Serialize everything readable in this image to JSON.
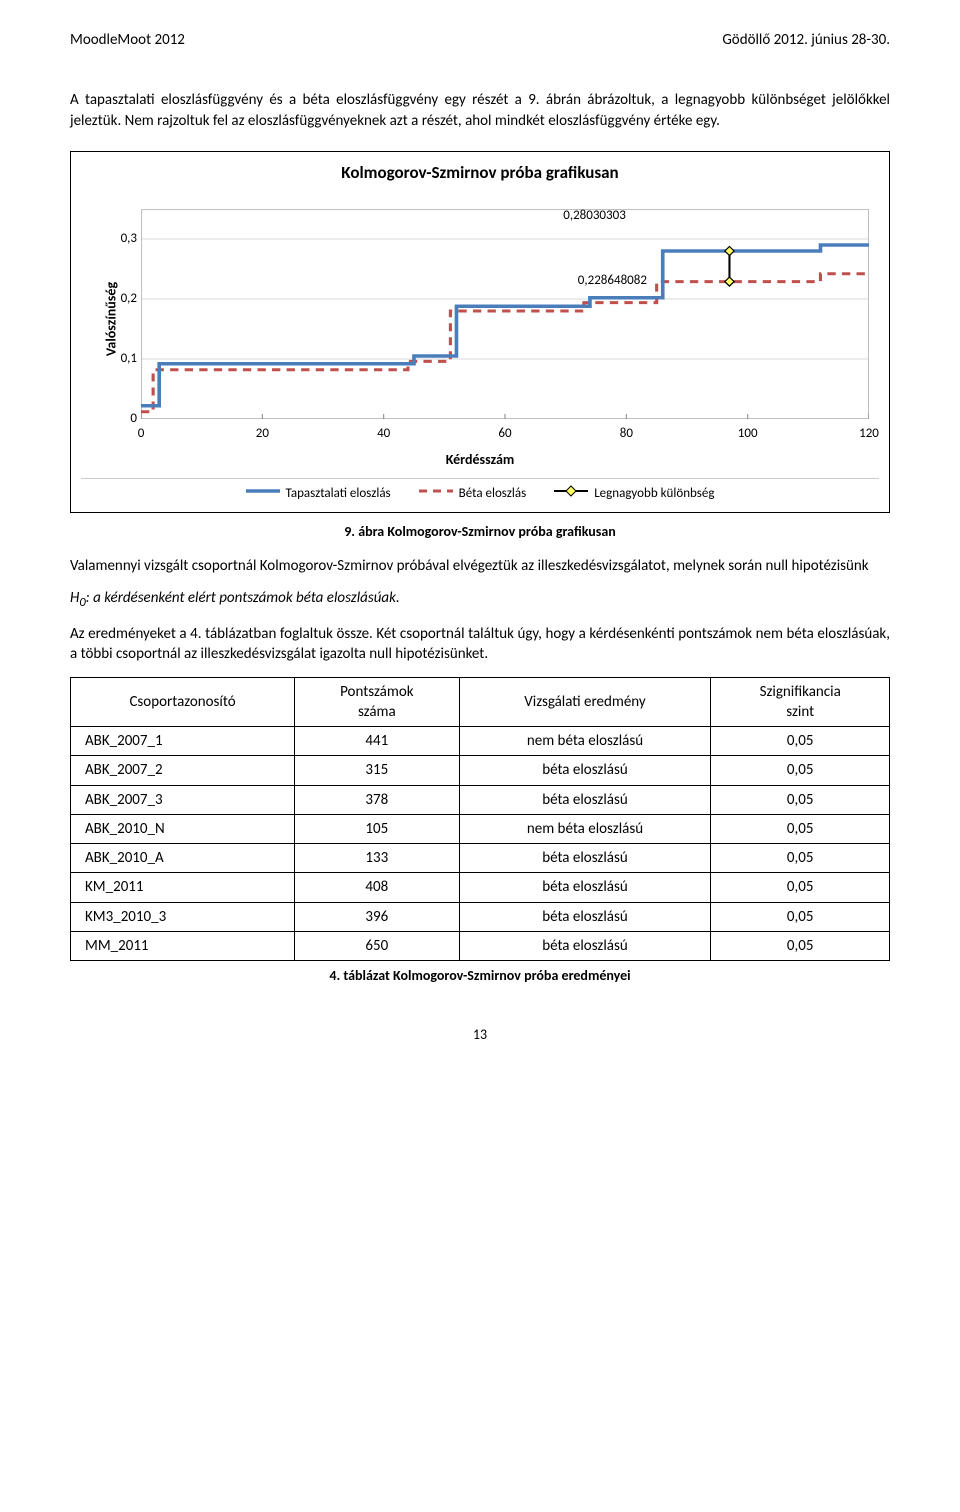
{
  "header": {
    "left": "MoodleMoot 2012",
    "right": "Gödöllő 2012. június 28-30."
  },
  "para1": "A tapasztalati eloszlásfüggvény és a béta eloszlásfüggvény egy részét a 9. ábrán ábrázoltuk, a legnagyobb különbséget jelölőkkel jeleztük. Nem rajzoltuk fel az eloszlásfüggvényeknek azt a részét, ahol mindkét eloszlásfüggvény értéke egy.",
  "chart": {
    "title": "Kolmogorov-Szmirnov próba grafikusan",
    "ylabel": "Valószínűség",
    "xlabel": "Kérdésszám",
    "xlim": [
      0,
      120
    ],
    "ylim": [
      0,
      0.35
    ],
    "yticks": [
      0,
      0.1,
      0.2,
      0.3
    ],
    "ytick_labels": [
      "0",
      "0,1",
      "0,2",
      "0,3"
    ],
    "xticks": [
      0,
      20,
      40,
      60,
      80,
      100,
      120
    ],
    "annot_top": "0,28030303",
    "annot_bottom": "0,228648082",
    "colors": {
      "empirical": "#4a7ebb",
      "beta": "#c0504d",
      "diff": "#000000",
      "grid": "#d9d9d9",
      "axis": "#888888",
      "plot_border": "#bfbfbf"
    },
    "line_width_empirical": 3.5,
    "line_width_beta": 3,
    "beta_dash": "8,6",
    "empirical_points": [
      [
        0,
        0.022
      ],
      [
        3,
        0.022
      ],
      [
        3,
        0.092
      ],
      [
        45,
        0.092
      ],
      [
        45,
        0.105
      ],
      [
        52,
        0.105
      ],
      [
        52,
        0.188
      ],
      [
        74,
        0.188
      ],
      [
        74,
        0.202
      ],
      [
        86,
        0.202
      ],
      [
        86,
        0.28
      ],
      [
        112,
        0.28
      ],
      [
        112,
        0.29
      ],
      [
        120,
        0.29
      ]
    ],
    "beta_points": [
      [
        0,
        0.012
      ],
      [
        2,
        0.012
      ],
      [
        2,
        0.082
      ],
      [
        44,
        0.082
      ],
      [
        44,
        0.096
      ],
      [
        51,
        0.096
      ],
      [
        51,
        0.18
      ],
      [
        73,
        0.18
      ],
      [
        73,
        0.194
      ],
      [
        85,
        0.194
      ],
      [
        85,
        0.229
      ],
      [
        112,
        0.229
      ],
      [
        112,
        0.242
      ],
      [
        120,
        0.242
      ]
    ],
    "diff_line": {
      "x": 97,
      "y1": 0.28,
      "y2": 0.229
    },
    "marker_size": 4.5,
    "legend": {
      "empirical": "Tapasztalati eloszlás",
      "beta": "Béta eloszlás",
      "diff": "Legnagyobb különbség"
    }
  },
  "fig_caption": "9. ábra Kolmogorov-Szmirnov próba grafikusan",
  "para2": "Valamennyi vizsgált csoportnál Kolmogorov-Szmirnov próbával elvégeztük az illeszkedésvizsgálatot, melynek során null hipotézisünk",
  "hypo_label": "H",
  "hypo_sub": "0",
  "hypo_text": ": a kérdésenként elért pontszámok béta eloszlásúak.",
  "para3": "Az eredményeket a 4. táblázatban foglaltuk össze. Két csoportnál találtuk úgy, hogy a kérdésenkénti pontszámok nem béta eloszlásúak, a többi csoportnál az illeszkedésvizsgálat igazolta null hipotézisünket.",
  "table": {
    "headers": [
      "Csoportazonosító",
      "Pontszámok száma",
      "Vizsgálati eredmény",
      "Szignifikancia szint"
    ],
    "header_line1": [
      "",
      "Pontszámok",
      "",
      "Szignifikancia"
    ],
    "header_line2": [
      "Csoportazonosító",
      "száma",
      "Vizsgálati eredmény",
      "szint"
    ],
    "rows": [
      [
        "ABK_2007_1",
        "441",
        "nem béta eloszlású",
        "0,05"
      ],
      [
        "ABK_2007_2",
        "315",
        "béta eloszlású",
        "0,05"
      ],
      [
        "ABK_2007_3",
        "378",
        "béta eloszlású",
        "0,05"
      ],
      [
        "ABK_2010_N",
        "105",
        "nem béta eloszlású",
        "0,05"
      ],
      [
        "ABK_2010_A",
        "133",
        "béta eloszlású",
        "0,05"
      ],
      [
        "KM_2011",
        "408",
        "béta eloszlású",
        "0,05"
      ],
      [
        "KM3_2010_3",
        "396",
        "béta eloszlású",
        "0,05"
      ],
      [
        "MM_2011",
        "650",
        "béta eloszlású",
        "0,05"
      ]
    ]
  },
  "table_caption": "4. táblázat Kolmogorov-Szmirnov próba eredményei",
  "page_number": "13"
}
